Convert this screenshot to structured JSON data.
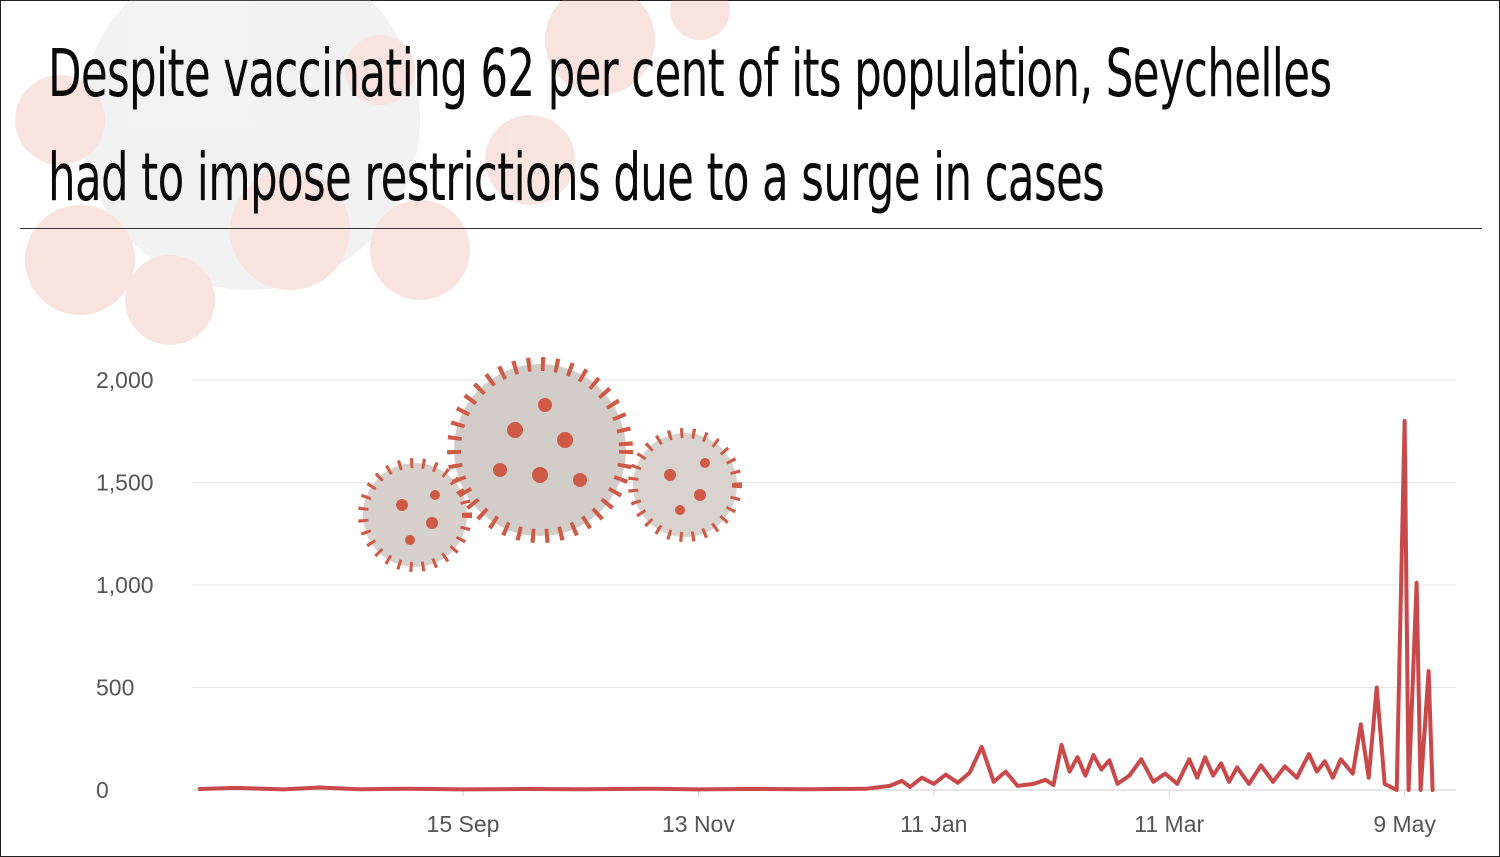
{
  "title": {
    "line1": "Despite vaccinating 62 per cent of its population, Seychelles",
    "line2": "had to impose restrictions due to a surge in cases"
  },
  "colors": {
    "series": "#c9484a",
    "grid": "#e6e6e6",
    "tick_text": "#555555",
    "title_text": "#0a0a0a",
    "virus": "#cf5a45"
  },
  "chart_data": {
    "type": "line",
    "title": "Despite vaccinating 62 per cent of its population, Seychelles had to impose restrictions due to a surge in cases",
    "xlabel": "",
    "ylabel": "",
    "ylim": [
      0,
      2000
    ],
    "y_ticks": [
      "2,000",
      "1,500",
      "1,000",
      "500",
      "0"
    ],
    "y_tick_values": [
      2000,
      1500,
      1000,
      500,
      0
    ],
    "x_ticks": [
      "15 Sep",
      "13 Nov",
      "11 Jan",
      "11 Mar",
      "9 May"
    ],
    "x_tick_dates": [
      "2020-09-15",
      "2020-11-13",
      "2021-01-11",
      "2021-03-11",
      "2021-05-09"
    ],
    "grid": true,
    "legend": "none",
    "series": [
      {
        "points": [
          [
            "2020-07-11",
            5
          ],
          [
            "2020-07-20",
            10
          ],
          [
            "2020-08-01",
            3
          ],
          [
            "2020-08-10",
            12
          ],
          [
            "2020-08-20",
            4
          ],
          [
            "2020-09-01",
            6
          ],
          [
            "2020-09-15",
            3
          ],
          [
            "2020-10-01",
            5
          ],
          [
            "2020-10-15",
            4
          ],
          [
            "2020-11-01",
            6
          ],
          [
            "2020-11-13",
            3
          ],
          [
            "2020-11-25",
            5
          ],
          [
            "2020-12-10",
            4
          ],
          [
            "2020-12-25",
            6
          ],
          [
            "2020-12-31",
            20
          ],
          [
            "2021-01-03",
            45
          ],
          [
            "2021-01-05",
            15
          ],
          [
            "2021-01-08",
            60
          ],
          [
            "2021-01-11",
            30
          ],
          [
            "2021-01-14",
            75
          ],
          [
            "2021-01-17",
            35
          ],
          [
            "2021-01-20",
            85
          ],
          [
            "2021-01-23",
            210
          ],
          [
            "2021-01-26",
            40
          ],
          [
            "2021-01-29",
            90
          ],
          [
            "2021-02-01",
            20
          ],
          [
            "2021-02-05",
            30
          ],
          [
            "2021-02-08",
            50
          ],
          [
            "2021-02-10",
            25
          ],
          [
            "2021-02-12",
            220
          ],
          [
            "2021-02-14",
            90
          ],
          [
            "2021-02-16",
            160
          ],
          [
            "2021-02-18",
            70
          ],
          [
            "2021-02-20",
            170
          ],
          [
            "2021-02-22",
            100
          ],
          [
            "2021-02-24",
            145
          ],
          [
            "2021-02-26",
            30
          ],
          [
            "2021-03-01",
            70
          ],
          [
            "2021-03-04",
            150
          ],
          [
            "2021-03-07",
            40
          ],
          [
            "2021-03-10",
            80
          ],
          [
            "2021-03-13",
            30
          ],
          [
            "2021-03-16",
            150
          ],
          [
            "2021-03-18",
            60
          ],
          [
            "2021-03-20",
            160
          ],
          [
            "2021-03-22",
            70
          ],
          [
            "2021-03-24",
            130
          ],
          [
            "2021-03-26",
            40
          ],
          [
            "2021-03-28",
            110
          ],
          [
            "2021-03-31",
            30
          ],
          [
            "2021-04-03",
            120
          ],
          [
            "2021-04-06",
            40
          ],
          [
            "2021-04-09",
            115
          ],
          [
            "2021-04-12",
            60
          ],
          [
            "2021-04-15",
            175
          ],
          [
            "2021-04-17",
            90
          ],
          [
            "2021-04-19",
            140
          ],
          [
            "2021-04-21",
            60
          ],
          [
            "2021-04-23",
            150
          ],
          [
            "2021-04-26",
            80
          ],
          [
            "2021-04-28",
            320
          ],
          [
            "2021-04-30",
            60
          ],
          [
            "2021-05-02",
            500
          ],
          [
            "2021-05-04",
            30
          ],
          [
            "2021-05-07",
            0
          ],
          [
            "2021-05-09",
            1800
          ],
          [
            "2021-05-10",
            0
          ],
          [
            "2021-05-12",
            1010
          ],
          [
            "2021-05-13",
            0
          ],
          [
            "2021-05-15",
            580
          ],
          [
            "2021-05-16",
            0
          ]
        ]
      }
    ]
  }
}
